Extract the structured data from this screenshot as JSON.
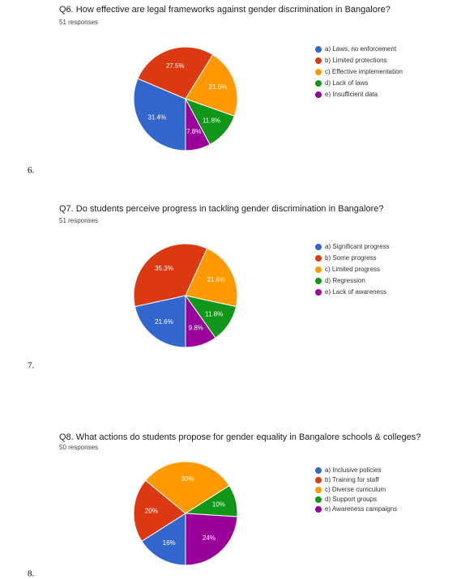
{
  "chart_data": [
    {
      "type": "pie",
      "label": "6.",
      "title": "Q6.  How effective are legal frameworks against gender discrimination in Bangalore?",
      "subtitle": "51 responses",
      "categories": [
        "a) Laws, no enforcement",
        "b) Limited protections",
        "c) Effective implementation",
        "d) Lack of laws",
        "e) Insufficient data"
      ],
      "values": [
        31.4,
        27.5,
        21.6,
        11.8,
        7.8
      ],
      "value_labels": [
        "31.4%",
        "27.5%",
        "21.6%",
        "11.8%",
        "7.8%"
      ],
      "colors": [
        "#3366cc",
        "#dc3912",
        "#ff9900",
        "#109618",
        "#990099"
      ],
      "legend": "right"
    },
    {
      "type": "pie",
      "label": "7.",
      "title": "Q7.  Do students perceive progress in tackling gender discrimination in Bangalore?",
      "subtitle": "51 responses",
      "categories": [
        "a) Significant progress",
        "b) Some progress",
        "c) Limited progress",
        "d) Regression",
        "e) Lack of awareness"
      ],
      "values": [
        21.6,
        35.3,
        21.6,
        11.8,
        9.8
      ],
      "value_labels": [
        "21.6%",
        "35.3%",
        "21.6%",
        "11.8%",
        "9.8%"
      ],
      "colors": [
        "#3366cc",
        "#dc3912",
        "#ff9900",
        "#109618",
        "#990099"
      ],
      "legend": "right"
    },
    {
      "type": "pie",
      "label": "8.",
      "title": "Q8.   What actions do students propose for gender equality in Bangalore schools & colleges?",
      "subtitle": "50 responses",
      "categories": [
        "a) Inclusive policies",
        "b) Training for staff",
        "c) Diverse curriculum",
        "d) Support groups",
        "e) Awareness campaigns"
      ],
      "values": [
        16,
        20,
        30,
        10,
        24
      ],
      "value_labels": [
        "16%",
        "20%",
        "30%",
        "10%",
        "24%"
      ],
      "colors": [
        "#3366cc",
        "#dc3912",
        "#ff9900",
        "#109618",
        "#990099"
      ],
      "legend": "right"
    }
  ]
}
